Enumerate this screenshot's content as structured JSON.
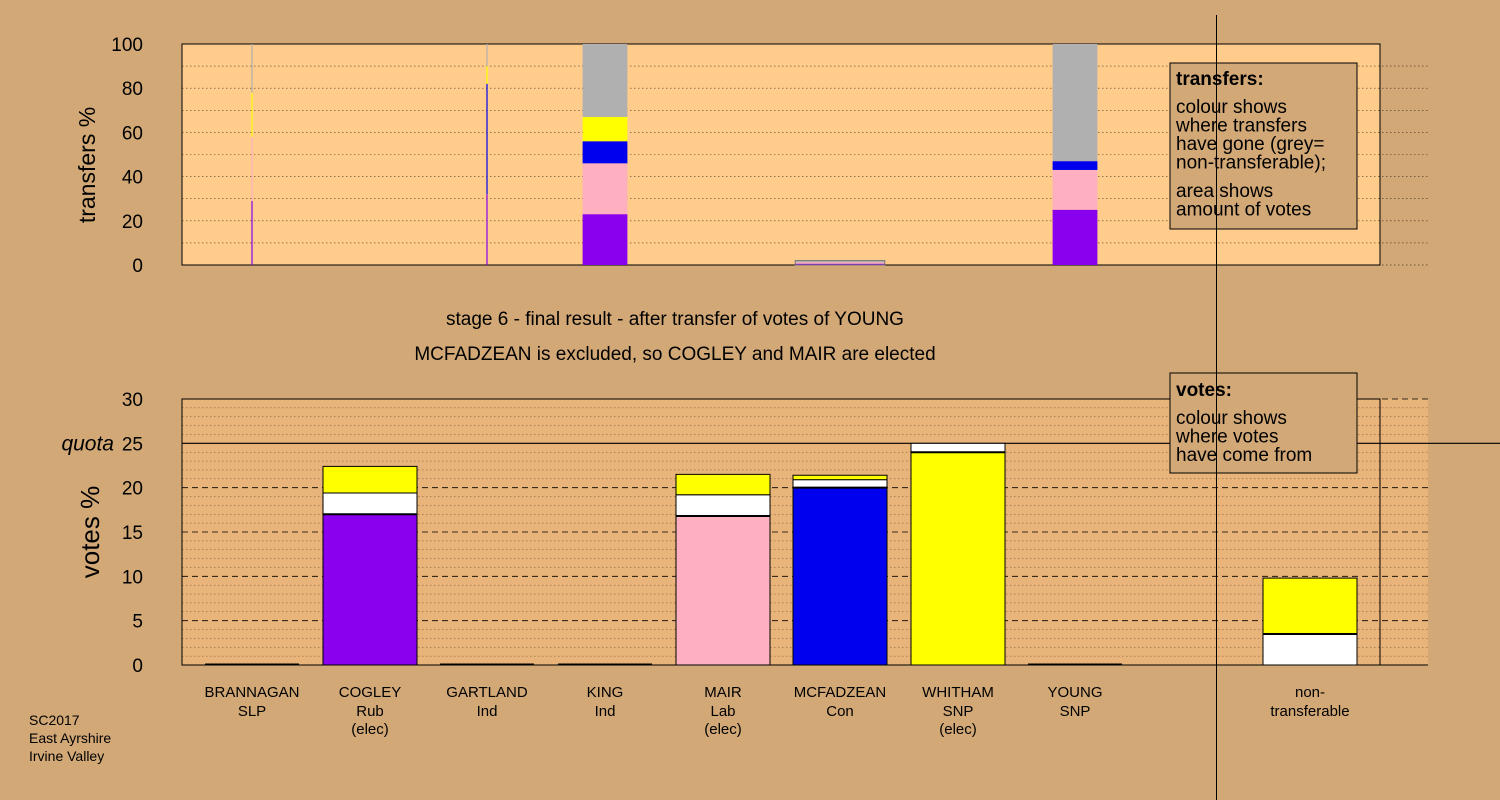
{
  "chart_data": [
    {
      "type": "bar",
      "stacked": true,
      "ylabel": "transfers %",
      "ylim": [
        0,
        100
      ],
      "yticks": [
        0,
        20,
        40,
        60,
        80,
        100
      ],
      "candidates": [
        "BRANNAGAN",
        "COGLEY",
        "GARTLAND",
        "KING",
        "MAIR",
        "MCFADZEAN",
        "WHITHAM",
        "YOUNG"
      ],
      "transfer_blocks": [
        {
          "candidate": "BRANNAGAN",
          "relative_width": 0.01,
          "segments": [
            {
              "color": "#8800ee",
              "value": 29
            },
            {
              "color": "#ffb0c0",
              "value": 29
            },
            {
              "color": "#ffff00",
              "value": 20
            },
            {
              "color": "#b0b0b0",
              "value": 22
            }
          ]
        },
        {
          "candidate": "GARTLAND",
          "relative_width": 0.01,
          "segments": [
            {
              "color": "#8800ee",
              "value": 32
            },
            {
              "color": "#0000ee",
              "value": 50
            },
            {
              "color": "#ffff00",
              "value": 8
            },
            {
              "color": "#b0b0b0",
              "value": 10
            }
          ]
        },
        {
          "candidate": "KING",
          "relative_width": 0.4,
          "segments": [
            {
              "color": "#8800ee",
              "value": 23
            },
            {
              "color": "#ffb0c0",
              "value": 23
            },
            {
              "color": "#0000ee",
              "value": 10
            },
            {
              "color": "#ffff00",
              "value": 11
            },
            {
              "color": "#b0b0b0",
              "value": 33
            }
          ]
        },
        {
          "candidate": "MCFADZEAN",
          "relative_width": 0.8,
          "segments": [
            {
              "color": "#8800ee",
              "value": 0.6
            },
            {
              "color": "#ffb0c0",
              "value": 0.6
            },
            {
              "color": "#b0b0b0",
              "value": 0.8
            }
          ]
        },
        {
          "candidate": "YOUNG",
          "relative_width": 0.4,
          "segments": [
            {
              "color": "#8800ee",
              "value": 25
            },
            {
              "color": "#ffb0c0",
              "value": 18
            },
            {
              "color": "#0000ee",
              "value": 4
            },
            {
              "color": "#b0b0b0",
              "value": 53
            }
          ]
        }
      ],
      "legend": {
        "title": "transfers:",
        "lines1": [
          "colour shows",
          "where transfers",
          "have gone (grey=",
          "non-transferable);"
        ],
        "lines2": [
          "area shows",
          "amount of votes"
        ]
      }
    },
    {
      "type": "bar",
      "stacked": true,
      "ylabel": "votes %",
      "ylim": [
        0,
        30
      ],
      "yticks": [
        0,
        5,
        10,
        15,
        20,
        25,
        30
      ],
      "quota": 25,
      "quota_label": "quota",
      "title_lines": [
        "stage 6 - final result - after transfer of votes of YOUNG",
        "MCFADZEAN is excluded, so COGLEY and MAIR are elected"
      ],
      "categories": [
        {
          "name": "BRANNAGAN",
          "party": "SLP",
          "status": ""
        },
        {
          "name": "COGLEY",
          "party": "Rub",
          "status": "(elec)"
        },
        {
          "name": "GARTLAND",
          "party": "Ind",
          "status": ""
        },
        {
          "name": "KING",
          "party": "Ind",
          "status": ""
        },
        {
          "name": "MAIR",
          "party": "Lab",
          "status": "(elec)"
        },
        {
          "name": "MCFADZEAN",
          "party": "Con",
          "status": ""
        },
        {
          "name": "WHITHAM",
          "party": "SNP",
          "status": "(elec)"
        },
        {
          "name": "YOUNG",
          "party": "SNP",
          "status": ""
        }
      ],
      "bars": [
        {
          "segments": []
        },
        {
          "segments": [
            {
              "color": "#8800ee",
              "value": 17.0
            },
            {
              "color": "#ffffff",
              "value": 2.4
            },
            {
              "color": "#ffff00",
              "value": 3.0
            }
          ]
        },
        {
          "segments": []
        },
        {
          "segments": []
        },
        {
          "segments": [
            {
              "color": "#ffb0c0",
              "value": 16.8
            },
            {
              "color": "#ffffff",
              "value": 2.4
            },
            {
              "color": "#ffff00",
              "value": 2.3
            }
          ]
        },
        {
          "segments": [
            {
              "color": "#0000ee",
              "value": 20.0
            },
            {
              "color": "#ffffff",
              "value": 0.9
            },
            {
              "color": "#ffff00",
              "value": 0.5
            }
          ]
        },
        {
          "segments": [
            {
              "color": "#ffff00",
              "value": 24.0
            },
            {
              "color": "#ffffff",
              "value": 1.0
            }
          ]
        },
        {
          "segments": []
        }
      ],
      "nontransferable": {
        "label_lines": [
          "non-",
          "transferable"
        ],
        "segments": [
          {
            "color": "#ffffff",
            "value": 3.5
          },
          {
            "color": "#ffff00",
            "value": 6.3
          }
        ]
      },
      "legend": {
        "title": "votes:",
        "lines": [
          "colour shows",
          "where votes",
          "have come from"
        ]
      }
    }
  ],
  "footer": {
    "lines": [
      "SC2017",
      "East Ayrshire",
      "Irvine Valley"
    ]
  },
  "colors": {
    "background": "#d2a877",
    "plot": "#ffcc8c",
    "axis": "#000000"
  }
}
